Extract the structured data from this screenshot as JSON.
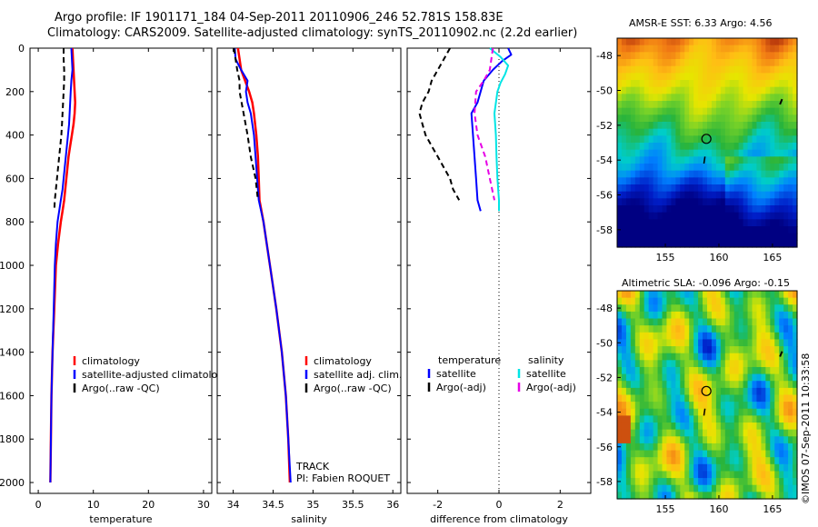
{
  "title_line1": "Argo profile: IF 1901171_184 04-Sep-2011 20110906_246 52.781S 158.83E",
  "title_line2": "Climatology: CARS2009. Satellite-adjusted climatology: synTS_20110902.nc (2.2d earlier)",
  "sst_map_title": "AMSR-E SST: 6.33 Argo: 4.56",
  "sla_map_title": "Altimetric SLA: -0.096 Argo: -0.15",
  "side_stamp": "©IMOS 07-Sep-2011 10:33:58",
  "annotation_track": "TRACK",
  "annotation_pi": "PI: Fabien ROQUET",
  "colors": {
    "climatology": "#ff0000",
    "satellite": "#0000ff",
    "argo": "#000000",
    "sal_satellite": "#00e5e5",
    "sal_argo": "#e600e6"
  },
  "chart_data": [
    {
      "type": "line",
      "panel": "temperature",
      "xlabel": "temperature",
      "xlim": [
        -1.5,
        31.5
      ],
      "ylim": [
        2050,
        0
      ],
      "xticks": [
        0,
        10,
        20,
        30
      ],
      "yticks": [
        0,
        200,
        400,
        600,
        800,
        1000,
        1200,
        1400,
        1600,
        1800,
        2000
      ],
      "legend": [
        "climatology",
        "satellite-adjusted climatology",
        "Argo(..raw -QC)"
      ],
      "series": [
        {
          "name": "climatology",
          "depth": [
            0,
            50,
            100,
            150,
            200,
            250,
            300,
            350,
            400,
            450,
            500,
            550,
            600,
            650,
            700,
            750,
            800,
            900,
            1000,
            1200,
            1400,
            1600,
            1800,
            2000
          ],
          "values": [
            6.2,
            6.3,
            6.4,
            6.5,
            6.6,
            6.7,
            6.6,
            6.4,
            6.1,
            5.8,
            5.5,
            5.3,
            5.1,
            4.9,
            4.7,
            4.4,
            4.1,
            3.6,
            3.2,
            2.9,
            2.6,
            2.4,
            2.3,
            2.2
          ]
        },
        {
          "name": "satellite-adjusted climatology",
          "depth": [
            0,
            50,
            100,
            150,
            200,
            250,
            300,
            350,
            400,
            450,
            500,
            550,
            600,
            650,
            700,
            750,
            800,
            900,
            1000,
            1200,
            1400,
            1600,
            1800,
            2000
          ],
          "values": [
            6.0,
            6.1,
            6.2,
            6.0,
            5.9,
            5.8,
            5.7,
            5.6,
            5.4,
            5.2,
            5.0,
            4.8,
            4.6,
            4.4,
            4.1,
            3.8,
            3.5,
            3.2,
            3.0,
            2.8,
            2.6,
            2.4,
            2.3,
            2.2
          ]
        },
        {
          "name": "Argo(..raw -QC)",
          "depth": [
            0,
            50,
            100,
            150,
            200,
            250,
            300,
            350,
            400,
            450,
            500,
            550,
            600,
            650,
            700,
            750
          ],
          "values": [
            4.6,
            4.6,
            4.7,
            4.7,
            4.6,
            4.5,
            4.4,
            4.3,
            4.2,
            4.0,
            3.8,
            3.6,
            3.4,
            3.2,
            3.0,
            2.9
          ]
        }
      ]
    },
    {
      "type": "line",
      "panel": "salinity",
      "xlabel": "salinity",
      "xlim": [
        33.8,
        36.1
      ],
      "ylim": [
        2050,
        0
      ],
      "xticks": [
        34,
        34.5,
        35,
        35.5,
        36
      ],
      "legend": [
        "climatology",
        "satellite adj. clim.",
        "Argo(..raw -QC)"
      ],
      "series": [
        {
          "name": "climatology",
          "depth": [
            0,
            50,
            100,
            150,
            200,
            250,
            300,
            400,
            500,
            600,
            700,
            800,
            1000,
            1200,
            1400,
            1600,
            1800,
            2000
          ],
          "values": [
            34.06,
            34.08,
            34.1,
            34.15,
            34.2,
            34.24,
            34.26,
            34.29,
            34.31,
            34.32,
            34.33,
            34.38,
            34.46,
            34.54,
            34.61,
            34.66,
            34.69,
            34.71
          ]
        },
        {
          "name": "satellite adj. clim.",
          "depth": [
            0,
            50,
            100,
            150,
            200,
            250,
            300,
            400,
            500,
            600,
            700,
            800,
            1000,
            1200,
            1400,
            1600,
            1800,
            2000
          ],
          "values": [
            34.02,
            34.03,
            34.1,
            34.18,
            34.16,
            34.18,
            34.22,
            34.26,
            34.28,
            34.3,
            34.32,
            34.38,
            34.46,
            34.54,
            34.61,
            34.66,
            34.69,
            34.72
          ]
        },
        {
          "name": "Argo(..raw -QC)",
          "depth": [
            0,
            50,
            100,
            150,
            200,
            300,
            400,
            500,
            600,
            700
          ],
          "values": [
            34.01,
            34.03,
            34.05,
            34.08,
            34.08,
            34.13,
            34.18,
            34.22,
            34.28,
            34.31
          ]
        }
      ]
    },
    {
      "type": "line",
      "panel": "difference",
      "xlabel": "difference from climatology",
      "xlim": [
        -3.0,
        3.0
      ],
      "ylim": [
        2050,
        0
      ],
      "xticks": [
        -2,
        0,
        2
      ],
      "legend": [
        "temperature",
        "satellite",
        "Argo(-adj)",
        "salinity",
        "satellite",
        "Argo(-adj)"
      ],
      "series": [
        {
          "name": "temperature satellite",
          "depth": [
            0,
            30,
            60,
            100,
            150,
            200,
            250,
            300,
            400,
            500,
            600,
            700,
            750
          ],
          "values": [
            0.3,
            0.4,
            0.1,
            -0.2,
            -0.5,
            -0.6,
            -0.7,
            -0.9,
            -0.85,
            -0.8,
            -0.75,
            -0.7,
            -0.6
          ]
        },
        {
          "name": "temperature Argo(-adj)",
          "depth": [
            0,
            50,
            100,
            150,
            200,
            250,
            300,
            350,
            400,
            450,
            500,
            550,
            600,
            650,
            700
          ],
          "values": [
            -1.6,
            -1.8,
            -2.0,
            -2.2,
            -2.3,
            -2.5,
            -2.6,
            -2.5,
            -2.4,
            -2.2,
            -2.0,
            -1.8,
            -1.6,
            -1.5,
            -1.3
          ]
        },
        {
          "name": "salinity satellite",
          "depth": [
            0,
            40,
            80,
            120,
            160,
            200,
            300,
            400,
            500,
            600,
            700,
            750
          ],
          "values": [
            -0.3,
            0.05,
            0.3,
            0.2,
            0.05,
            -0.05,
            -0.15,
            -0.1,
            -0.08,
            -0.05,
            0.0,
            0.0
          ]
        },
        {
          "name": "salinity Argo(-adj)",
          "depth": [
            0,
            50,
            100,
            150,
            200,
            300,
            400,
            500,
            600,
            700
          ],
          "values": [
            -0.2,
            -0.25,
            -0.3,
            -0.5,
            -0.75,
            -0.8,
            -0.7,
            -0.45,
            -0.3,
            -0.15
          ]
        }
      ]
    },
    {
      "type": "heatmap",
      "panel": "sst_map",
      "xlim": [
        150.5,
        167.3
      ],
      "ylim": [
        -59,
        -47
      ],
      "xticks": [
        155,
        160,
        165
      ],
      "yticks": [
        -48,
        -50,
        -52,
        -54,
        -56,
        -58
      ]
    },
    {
      "type": "heatmap",
      "panel": "sla_map",
      "xlim": [
        150.5,
        167.3
      ],
      "ylim": [
        -59,
        -47
      ],
      "xticks": [
        155,
        160,
        165
      ],
      "yticks": [
        -48,
        -50,
        -52,
        -54,
        -56,
        -58
      ]
    }
  ]
}
